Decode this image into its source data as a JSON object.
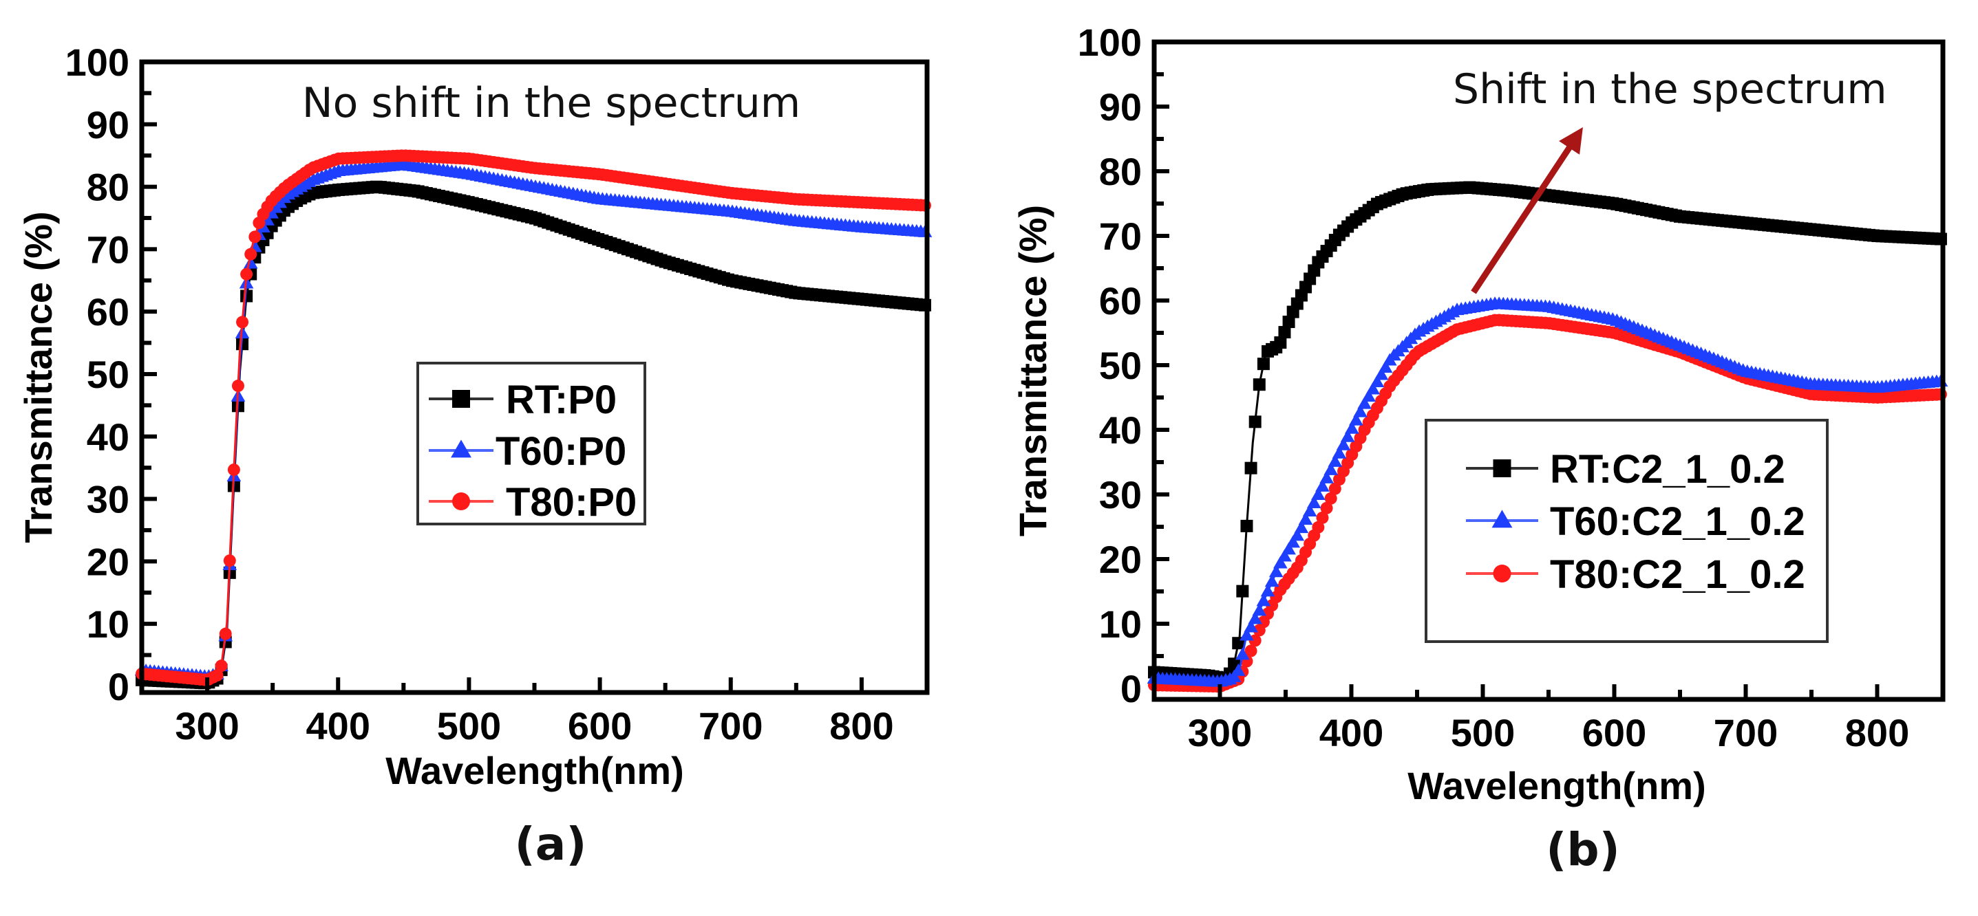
{
  "chart_data": [
    {
      "type": "line",
      "panel_label": "(a)",
      "title": "",
      "annotation": "No shift in the spectrum",
      "xlabel": "Wavelength(nm)",
      "ylabel": "Transmittance (%)",
      "xlim": [
        250,
        850
      ],
      "ylim": [
        -1,
        100
      ],
      "xticks": [
        "300",
        "400",
        "500",
        "600",
        "700",
        "800"
      ],
      "yticks": [
        "0",
        "10",
        "20",
        "30",
        "40",
        "50",
        "60",
        "70",
        "80",
        "90",
        "100"
      ],
      "legend_position": "center",
      "grid": false,
      "series": [
        {
          "name": "RT:P0",
          "color": "#000000",
          "marker": "square",
          "x": [
            250,
            300,
            310,
            315,
            320,
            325,
            330,
            335,
            340,
            350,
            360,
            370,
            380,
            400,
            430,
            460,
            500,
            550,
            600,
            650,
            700,
            750,
            800,
            850
          ],
          "y": [
            1,
            0.5,
            1.5,
            8.5,
            30.5,
            50.5,
            62.5,
            68,
            70.5,
            74,
            76.5,
            78,
            79,
            79.5,
            80,
            79.3,
            77.5,
            75,
            71.5,
            68,
            65,
            63,
            62,
            61
          ]
        },
        {
          "name": "T60:P0",
          "color": "#1f3fff",
          "marker": "triangle",
          "x": [
            250,
            300,
            310,
            315,
            320,
            325,
            330,
            335,
            340,
            350,
            360,
            380,
            400,
            450,
            500,
            550,
            600,
            650,
            700,
            750,
            800,
            850
          ],
          "y": [
            2.5,
            1.5,
            2,
            9.5,
            32,
            52,
            64.5,
            69.5,
            72.5,
            76,
            78.5,
            81,
            82.5,
            83.5,
            82,
            80,
            78,
            77,
            76,
            74.5,
            73.5,
            72.7
          ]
        },
        {
          "name": "T80:P0",
          "color": "#ff1a1a",
          "marker": "circle",
          "x": [
            250,
            300,
            310,
            315,
            320,
            325,
            330,
            335,
            340,
            345,
            350,
            360,
            380,
            400,
            450,
            500,
            550,
            600,
            650,
            700,
            750,
            800,
            850
          ],
          "y": [
            2,
            1,
            2,
            10,
            33,
            54,
            66,
            71,
            74.5,
            76.5,
            78,
            80,
            83,
            84.5,
            85,
            84.5,
            83,
            82,
            80.5,
            79,
            78,
            77.5,
            77
          ]
        }
      ]
    },
    {
      "type": "line",
      "panel_label": "(b)",
      "title": "",
      "annotation": "Shift in the spectrum",
      "arrow_color": "#a81616",
      "xlabel": "Wavelength(nm)",
      "ylabel": "Transmittance (%)",
      "xlim": [
        250,
        850
      ],
      "ylim": [
        -1.7,
        100
      ],
      "xticks": [
        "300",
        "400",
        "500",
        "600",
        "700",
        "800"
      ],
      "yticks": [
        "0",
        "10",
        "20",
        "30",
        "40",
        "50",
        "60",
        "70",
        "80",
        "90",
        "100"
      ],
      "legend_position": "center-right",
      "grid": false,
      "series": [
        {
          "name": "RT:C2_1_0.2",
          "color": "#000000",
          "marker": "square",
          "x": [
            250,
            290,
            305,
            310,
            315,
            320,
            325,
            330,
            335,
            345,
            355,
            365,
            375,
            390,
            400,
            420,
            440,
            460,
            490,
            520,
            560,
            600,
            650,
            700,
            750,
            800,
            850
          ],
          "y": [
            2.5,
            2,
            1.5,
            3,
            8,
            24,
            38,
            47,
            52,
            53,
            58,
            62,
            66,
            70,
            72,
            75,
            76.5,
            77.2,
            77.5,
            77,
            76,
            75,
            73,
            72,
            71,
            70,
            69.5
          ]
        },
        {
          "name": "T80:C2_1_0.2",
          "color": "#ff1a1a",
          "marker": "circle",
          "x": [
            250,
            300,
            315,
            320,
            330,
            345,
            360,
            375,
            390,
            410,
            430,
            450,
            480,
            510,
            550,
            600,
            650,
            700,
            750,
            800,
            850
          ],
          "y": [
            0.5,
            0.3,
            1.5,
            4,
            9,
            15,
            19,
            25,
            32,
            40,
            47,
            52,
            55.5,
            57,
            56.5,
            55,
            52,
            48,
            45.5,
            45,
            45.5
          ]
        },
        {
          "name": "T60:C2_1_0.2",
          "color": "#1f3fff",
          "marker": "triangle",
          "x": [
            250,
            300,
            310,
            315,
            320,
            330,
            345,
            360,
            375,
            390,
            410,
            430,
            450,
            480,
            510,
            550,
            600,
            650,
            700,
            750,
            800,
            850
          ],
          "y": [
            1.5,
            1,
            1.5,
            3,
            8,
            12,
            19,
            24,
            30,
            36,
            44,
            51,
            55,
            58.5,
            59.5,
            59,
            57,
            53,
            49,
            47,
            46.5,
            47.5
          ]
        }
      ],
      "legend_order": [
        "RT:C2_1_0.2",
        "T60:C2_1_0.2",
        "T80:C2_1_0.2"
      ]
    }
  ]
}
